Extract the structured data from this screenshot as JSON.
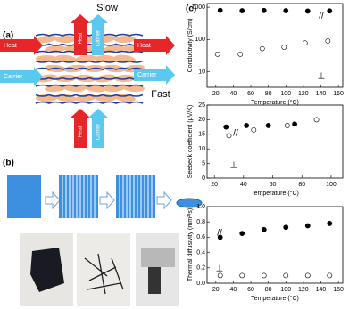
{
  "panel_a": {
    "label": "(a)",
    "slow": "Slow",
    "fast": "Fast",
    "arrows": [
      {
        "text": "Heat",
        "color": "#e8262a"
      },
      {
        "text": "Carrier",
        "color": "#5bc8f0"
      },
      {
        "text": "Heat",
        "color": "#e8262a"
      },
      {
        "text": "Carrier",
        "color": "#5bc8f0"
      },
      {
        "text": "Heat",
        "color": "#e8262a"
      },
      {
        "text": "Carrier",
        "color": "#5bc8f0"
      },
      {
        "text": "Heat",
        "color": "#e8262a"
      },
      {
        "text": "Carrier",
        "color": "#5bc8f0"
      }
    ]
  },
  "panel_b": {
    "label": "(b)"
  },
  "panel_c": {
    "label": "(c)"
  },
  "chart_data": [
    {
      "type": "scatter",
      "y_label": "Conductivity (S/cm)",
      "x_label": "Temperature (°C)",
      "yscale": "log",
      "xlim": [
        10,
        165
      ],
      "xticks": [
        20,
        40,
        60,
        80,
        100,
        120,
        140,
        160
      ],
      "ylim": [
        3.3,
        1300
      ],
      "yticks": [
        10,
        100,
        1000
      ],
      "series": [
        {
          "marker": "filled",
          "color": "#000000",
          "x": [
            25,
            50,
            75,
            100,
            125,
            150
          ],
          "values": [
            800,
            780,
            790,
            780,
            760,
            770
          ]
        },
        {
          "marker": "open",
          "color": "#000000",
          "x": [
            22,
            48,
            73,
            98,
            122,
            148
          ],
          "values": [
            35,
            35,
            52,
            58,
            78,
            90
          ]
        }
      ],
      "annotations": [
        "//",
        "⊥"
      ]
    },
    {
      "type": "scatter",
      "y_label": "Seebeck coefficient (μV/K)",
      "x_label": "Temperature (°C)",
      "xlim": [
        15,
        108
      ],
      "xticks": [
        20,
        40,
        60,
        80,
        100
      ],
      "ylim": [
        0,
        25
      ],
      "yticks": [
        0,
        5,
        10,
        15,
        20,
        25
      ],
      "series": [
        {
          "marker": "filled",
          "color": "#000000",
          "x": [
            28,
            42,
            57,
            75
          ],
          "values": [
            17.5,
            18,
            18,
            18.5
          ]
        },
        {
          "marker": "open",
          "color": "#000000",
          "x": [
            30,
            47,
            70,
            90
          ],
          "values": [
            14.5,
            16.5,
            18,
            20
          ]
        }
      ],
      "annotations": [
        "//",
        "⊥"
      ]
    },
    {
      "type": "scatter",
      "y_label": "Thermal diffusivity (mm²/s)",
      "x_label": "Temperature (°C)",
      "xlim": [
        10,
        165
      ],
      "xticks": [
        20,
        40,
        60,
        80,
        100,
        120,
        140,
        160
      ],
      "ylim": [
        0,
        1.0
      ],
      "yticks": [
        {
          "value": 0,
          "label": "0.0"
        },
        {
          "value": 0.2,
          "label": "0.2"
        },
        {
          "value": 0.4,
          "label": "0.4"
        },
        {
          "value": 0.6,
          "label": "0.6"
        },
        {
          "value": 0.8,
          "label": "0.8"
        },
        {
          "value": 1.0,
          "label": "1.0"
        }
      ],
      "series": [
        {
          "marker": "filled",
          "color": "#000000",
          "x": [
            25,
            50,
            75,
            100,
            125,
            150
          ],
          "values": [
            0.6,
            0.65,
            0.7,
            0.73,
            0.75,
            0.78
          ]
        },
        {
          "marker": "open",
          "color": "#000000",
          "x": [
            25,
            50,
            75,
            100,
            125,
            150
          ],
          "values": [
            0.1,
            0.1,
            0.1,
            0.1,
            0.1,
            0.1
          ]
        }
      ],
      "annotations": [
        "//",
        "⊥"
      ]
    }
  ]
}
